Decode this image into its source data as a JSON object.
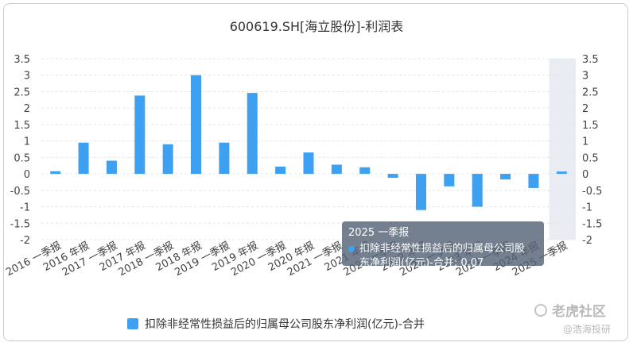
{
  "chart_data": {
    "type": "bar",
    "title": "600619.SH[海立股份]-利润表",
    "categories": [
      "2016 一季报",
      "2016 年报",
      "2017 一季报",
      "2017 年报",
      "2018 一季报",
      "2018 年报",
      "2019 一季报",
      "2019 年报",
      "2020 一季报",
      "2020 年报",
      "2021 一季报",
      "2021 年报",
      "2022 一季报",
      "2022 年报",
      "2023 一季报",
      "2023 年报",
      "2024 一季报",
      "2024 年报",
      "2025 一季报"
    ],
    "series": [
      {
        "name": "扣除非经常性损益后的归属母公司股东净利润(亿元)-合并",
        "values": [
          0.08,
          0.95,
          0.4,
          2.38,
          0.9,
          3.0,
          0.95,
          2.46,
          0.22,
          0.65,
          0.28,
          0.2,
          -0.12,
          -1.1,
          -0.38,
          -1.0,
          -0.17,
          -0.43,
          0.07
        ]
      }
    ],
    "ylim": [
      -2,
      3.5
    ],
    "yticks": [
      "3.5",
      "3",
      "2.5",
      "2",
      "1.5",
      "1",
      "0.5",
      "0",
      "-0.5",
      "-1",
      "-1.5",
      "-2"
    ],
    "grid": true,
    "highlighted_category_index": 18,
    "legend": "bottom"
  },
  "colors": {
    "bar": "#3ea0f0",
    "highlight_band": "#e9edf3"
  },
  "tooltip": {
    "title": "2025 一季报",
    "text": "扣除非经常性损益后的归属母公司股东净利润(亿元)-合并: 0.07"
  },
  "watermark": {
    "brand": "老虎社区",
    "author": "@浩海投研"
  }
}
